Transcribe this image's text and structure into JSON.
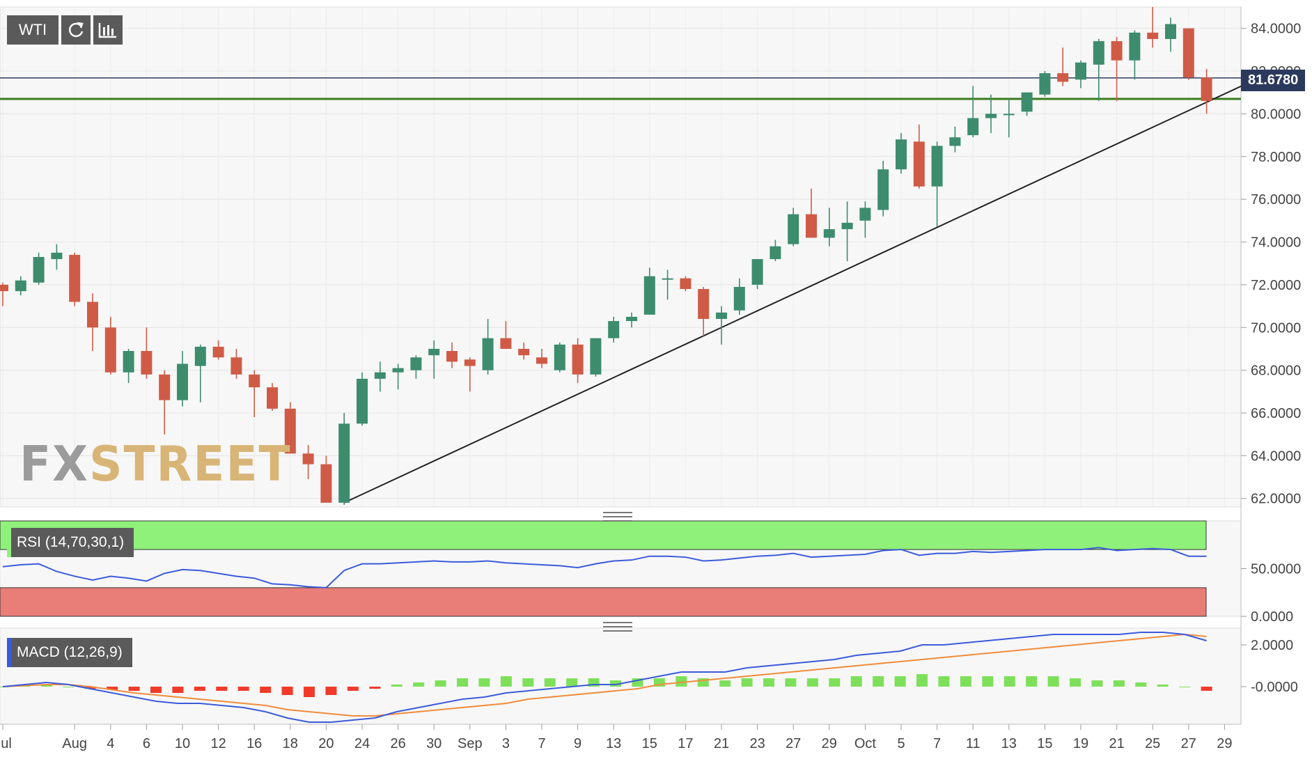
{
  "symbol": "WTI",
  "watermark": {
    "fx": "FX",
    "street": "STREET"
  },
  "current_price": "81.6780",
  "toolbar": {
    "refresh_icon": "refresh-icon",
    "chart_type_icon": "bar-chart-icon"
  },
  "rsi_panel": {
    "label": "RSI (14,70,30,1)",
    "tick_labels": [
      "50.0000",
      "0.0000"
    ],
    "overbought": 70,
    "oversold": 30
  },
  "macd_panel": {
    "label": "MACD (12,26,9)",
    "tick_labels": [
      "2.0000",
      "-0.0000"
    ]
  },
  "colors": {
    "up": "#3d8c6e",
    "down": "#cf5b47",
    "rsi_line": "#3b5bdb",
    "macd_line": "#3b5bdb",
    "signal_line": "#f08c3c",
    "hist_pos": "#7ee05a",
    "hist_neg": "#f03b2a",
    "support_line": "#3a7d1e",
    "price_line": "#2b3a5c",
    "rsi_overbought": "#8ff07a",
    "rsi_oversold": "#e97d78"
  },
  "chart_data": {
    "type": "candlestick",
    "title": "",
    "ylim": [
      61.6,
      85.0
    ],
    "yticks": [
      "62.0000",
      "64.0000",
      "66.0000",
      "68.0000",
      "70.0000",
      "72.0000",
      "74.0000",
      "76.0000",
      "78.0000",
      "80.0000",
      "82.0000",
      "84.0000"
    ],
    "ytick_values": [
      62,
      64,
      66,
      68,
      70,
      72,
      74,
      76,
      78,
      80,
      82,
      84
    ],
    "x_labels": [
      {
        "text": "Jul",
        "i": 0
      },
      {
        "text": "Aug",
        "i": 4
      },
      {
        "text": "4",
        "i": 6
      },
      {
        "text": "6",
        "i": 8
      },
      {
        "text": "10",
        "i": 10
      },
      {
        "text": "12",
        "i": 12
      },
      {
        "text": "16",
        "i": 14
      },
      {
        "text": "18",
        "i": 16
      },
      {
        "text": "20",
        "i": 18
      },
      {
        "text": "24",
        "i": 20
      },
      {
        "text": "26",
        "i": 22
      },
      {
        "text": "30",
        "i": 24
      },
      {
        "text": "Sep",
        "i": 26
      },
      {
        "text": "3",
        "i": 28
      },
      {
        "text": "7",
        "i": 30
      },
      {
        "text": "9",
        "i": 32
      },
      {
        "text": "13",
        "i": 34
      },
      {
        "text": "15",
        "i": 36
      },
      {
        "text": "17",
        "i": 38
      },
      {
        "text": "21",
        "i": 40
      },
      {
        "text": "23",
        "i": 42
      },
      {
        "text": "27",
        "i": 44
      },
      {
        "text": "29",
        "i": 46
      },
      {
        "text": "Oct",
        "i": 48
      },
      {
        "text": "5",
        "i": 50
      },
      {
        "text": "7",
        "i": 52
      },
      {
        "text": "11",
        "i": 54
      },
      {
        "text": "13",
        "i": 56
      },
      {
        "text": "15",
        "i": 58
      },
      {
        "text": "19",
        "i": 60
      },
      {
        "text": "21",
        "i": 62
      },
      {
        "text": "25",
        "i": 64
      },
      {
        "text": "27",
        "i": 66
      },
      {
        "text": "29",
        "i": 68
      }
    ],
    "candles": [
      [
        72.0,
        72.1,
        71.0,
        71.7
      ],
      [
        71.7,
        72.4,
        71.5,
        72.2
      ],
      [
        72.1,
        73.5,
        72.0,
        73.3
      ],
      [
        73.2,
        73.9,
        72.7,
        73.5
      ],
      [
        73.4,
        73.5,
        71.0,
        71.2
      ],
      [
        71.2,
        71.6,
        68.9,
        70.0
      ],
      [
        70.0,
        70.5,
        67.8,
        67.9
      ],
      [
        67.9,
        69.0,
        67.4,
        68.9
      ],
      [
        68.9,
        70.0,
        67.6,
        67.8
      ],
      [
        67.8,
        68.0,
        65.0,
        66.6
      ],
      [
        66.6,
        68.9,
        66.3,
        68.3
      ],
      [
        68.2,
        69.2,
        66.5,
        69.1
      ],
      [
        69.1,
        69.4,
        68.5,
        68.6
      ],
      [
        68.6,
        69.0,
        67.6,
        67.8
      ],
      [
        67.8,
        68.0,
        65.8,
        67.2
      ],
      [
        67.2,
        67.4,
        66.1,
        66.2
      ],
      [
        66.2,
        66.5,
        64.1,
        64.1
      ],
      [
        64.1,
        64.5,
        62.9,
        63.6
      ],
      [
        63.6,
        64.0,
        61.8,
        61.8
      ],
      [
        61.8,
        66.0,
        61.7,
        65.5
      ],
      [
        65.5,
        67.9,
        65.4,
        67.6
      ],
      [
        67.6,
        68.4,
        67.0,
        67.9
      ],
      [
        67.9,
        68.3,
        67.1,
        68.1
      ],
      [
        68.0,
        68.7,
        67.6,
        68.6
      ],
      [
        68.7,
        69.4,
        67.6,
        69.0
      ],
      [
        68.9,
        69.3,
        68.1,
        68.4
      ],
      [
        68.5,
        68.6,
        67.0,
        68.2
      ],
      [
        68.0,
        70.4,
        67.8,
        69.5
      ],
      [
        69.5,
        70.3,
        69.0,
        69.0
      ],
      [
        69.0,
        69.3,
        68.5,
        68.7
      ],
      [
        68.6,
        69.0,
        68.1,
        68.3
      ],
      [
        68.0,
        69.3,
        67.9,
        69.2
      ],
      [
        69.2,
        69.5,
        67.4,
        67.8
      ],
      [
        67.8,
        69.5,
        67.7,
        69.5
      ],
      [
        69.5,
        70.5,
        69.3,
        70.3
      ],
      [
        70.3,
        70.7,
        70.0,
        70.5
      ],
      [
        70.6,
        72.8,
        70.6,
        72.4
      ],
      [
        72.3,
        72.7,
        71.3,
        72.3
      ],
      [
        72.3,
        72.4,
        71.7,
        71.8
      ],
      [
        71.8,
        71.9,
        69.6,
        70.4
      ],
      [
        70.4,
        71.0,
        69.2,
        70.7
      ],
      [
        70.8,
        72.3,
        70.6,
        71.9
      ],
      [
        72.0,
        73.1,
        71.8,
        73.2
      ],
      [
        73.2,
        74.1,
        73.1,
        73.8
      ],
      [
        73.9,
        75.6,
        73.8,
        75.3
      ],
      [
        75.3,
        76.5,
        74.4,
        74.2
      ],
      [
        74.2,
        75.6,
        73.8,
        74.6
      ],
      [
        74.6,
        75.9,
        73.1,
        74.9
      ],
      [
        75.0,
        75.9,
        74.2,
        75.6
      ],
      [
        75.5,
        77.8,
        75.2,
        77.4
      ],
      [
        77.4,
        79.1,
        77.2,
        78.8
      ],
      [
        78.7,
        79.5,
        76.5,
        76.6
      ],
      [
        76.6,
        78.7,
        74.7,
        78.5
      ],
      [
        78.5,
        79.4,
        78.2,
        78.9
      ],
      [
        79.0,
        81.3,
        78.9,
        79.8
      ],
      [
        79.8,
        80.9,
        79.1,
        80.0
      ],
      [
        80.0,
        80.7,
        78.9,
        80.0
      ],
      [
        80.1,
        81.0,
        79.9,
        81.0
      ],
      [
        80.9,
        82.0,
        80.8,
        81.9
      ],
      [
        81.9,
        83.1,
        81.3,
        81.5
      ],
      [
        81.6,
        82.5,
        81.2,
        82.4
      ],
      [
        82.3,
        83.5,
        80.6,
        83.4
      ],
      [
        83.4,
        83.6,
        80.6,
        82.5
      ],
      [
        82.5,
        83.9,
        81.6,
        83.8
      ],
      [
        83.8,
        85.0,
        83.1,
        83.5
      ],
      [
        83.5,
        84.5,
        82.9,
        84.2
      ],
      [
        84.0,
        84.0,
        81.6,
        81.7
      ],
      [
        81.7,
        82.1,
        80.0,
        80.6
      ]
    ],
    "support_line": {
      "from": {
        "i": 19,
        "price": 61.8
      },
      "to": {
        "i": 69.2,
        "price": 81.4
      }
    },
    "horizontal_lines": [
      81.678,
      80.7
    ],
    "rsi": {
      "ylim": [
        0,
        100
      ],
      "values": [
        52,
        54,
        55,
        47,
        42,
        38,
        42,
        40,
        37,
        45,
        49,
        48,
        45,
        42,
        40,
        34,
        33,
        31,
        30,
        48,
        55,
        55,
        56,
        57,
        58,
        57,
        57,
        58,
        56,
        55,
        54,
        53,
        51,
        55,
        58,
        59,
        63,
        63,
        62,
        58,
        59,
        61,
        63,
        64,
        66,
        62,
        63,
        64,
        65,
        69,
        70,
        64,
        66,
        66,
        68,
        67,
        68,
        69,
        70,
        70,
        70,
        72,
        69,
        70,
        71,
        70,
        63,
        63
      ]
    },
    "macd": {
      "ylim": [
        -1.8,
        2.8
      ],
      "macd": [
        0,
        0.1,
        0.2,
        0.1,
        -0.1,
        -0.3,
        -0.5,
        -0.7,
        -0.8,
        -0.8,
        -0.9,
        -1.0,
        -1.2,
        -1.5,
        -1.7,
        -1.7,
        -1.6,
        -1.5,
        -1.2,
        -1.0,
        -0.8,
        -0.6,
        -0.5,
        -0.3,
        -0.2,
        -0.1,
        0.0,
        0.1,
        0.1,
        0.3,
        0.5,
        0.7,
        0.7,
        0.7,
        0.9,
        1.0,
        1.1,
        1.2,
        1.3,
        1.5,
        1.6,
        1.7,
        2.0,
        2.0,
        2.1,
        2.2,
        2.3,
        2.4,
        2.5,
        2.5,
        2.5,
        2.5,
        2.6,
        2.6,
        2.5,
        2.2
      ],
      "signal": [
        0,
        0.05,
        0.1,
        0.1,
        0,
        -0.15,
        -0.3,
        -0.4,
        -0.5,
        -0.6,
        -0.7,
        -0.8,
        -0.9,
        -1.1,
        -1.2,
        -1.3,
        -1.4,
        -1.4,
        -1.3,
        -1.2,
        -1.1,
        -1.0,
        -0.9,
        -0.8,
        -0.6,
        -0.5,
        -0.4,
        -0.3,
        -0.2,
        -0.1,
        0.1,
        0.2,
        0.3,
        0.4,
        0.5,
        0.6,
        0.7,
        0.8,
        0.9,
        1.0,
        1.1,
        1.2,
        1.3,
        1.4,
        1.5,
        1.6,
        1.7,
        1.8,
        1.9,
        2.0,
        2.1,
        2.2,
        2.3,
        2.4,
        2.5,
        2.4
      ],
      "hist": [
        0,
        0.05,
        0.1,
        0,
        -0.1,
        -0.15,
        -0.2,
        -0.3,
        -0.3,
        -0.2,
        -0.2,
        -0.2,
        -0.3,
        -0.4,
        -0.5,
        -0.4,
        -0.2,
        -0.1,
        0.1,
        0.2,
        0.3,
        0.4,
        0.4,
        0.5,
        0.4,
        0.4,
        0.4,
        0.4,
        0.3,
        0.4,
        0.4,
        0.5,
        0.4,
        0.3,
        0.4,
        0.4,
        0.4,
        0.4,
        0.4,
        0.5,
        0.5,
        0.5,
        0.6,
        0.5,
        0.5,
        0.5,
        0.5,
        0.5,
        0.5,
        0.4,
        0.3,
        0.3,
        0.2,
        0.1,
        0.0,
        -0.2
      ]
    }
  }
}
